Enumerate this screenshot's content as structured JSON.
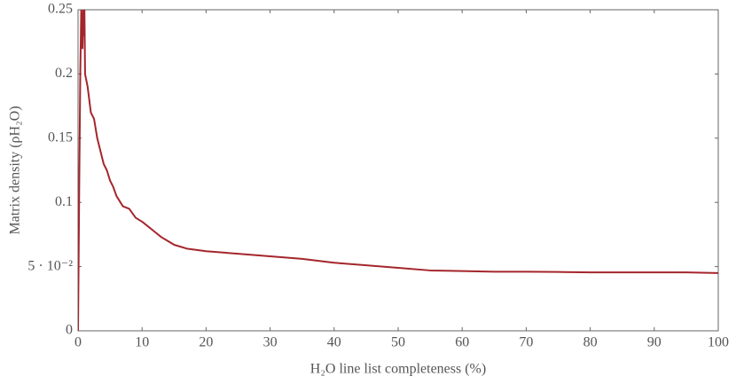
{
  "chart_data": {
    "type": "line",
    "xlabel": "H₂O line list completeness (%)",
    "ylabel": "Matrix density (ρH₂O)",
    "x": [
      0,
      0.2,
      0.35,
      0.5,
      0.6,
      0.7,
      0.8,
      0.9,
      1.0,
      1.1,
      1.5,
      2,
      2.5,
      3,
      3.5,
      4,
      4.5,
      5,
      5.5,
      6,
      7,
      8,
      9,
      10,
      11,
      12,
      13,
      14,
      15,
      17,
      20,
      25,
      30,
      35,
      40,
      45,
      50,
      55,
      60,
      65,
      70,
      75,
      80,
      85,
      90,
      95,
      100
    ],
    "series": [
      {
        "name": "density",
        "color": "#a4262c",
        "values": [
          0,
          0.12,
          0.2,
          0.25,
          0.23,
          0.22,
          0.25,
          0.23,
          0.25,
          0.2,
          0.19,
          0.17,
          0.165,
          0.15,
          0.14,
          0.13,
          0.125,
          0.117,
          0.112,
          0.105,
          0.097,
          0.095,
          0.088,
          0.085,
          0.081,
          0.077,
          0.073,
          0.07,
          0.067,
          0.064,
          0.062,
          0.06,
          0.058,
          0.056,
          0.053,
          0.051,
          0.049,
          0.047,
          0.0465,
          0.046,
          0.046,
          0.0458,
          0.0455,
          0.0455,
          0.0455,
          0.0455,
          0.045
        ]
      }
    ],
    "xlim": [
      0,
      100
    ],
    "xticks": [
      0,
      10,
      20,
      30,
      40,
      50,
      60,
      70,
      80,
      90,
      100
    ],
    "ylim": [
      0,
      0.25
    ],
    "yticks": [
      0,
      {
        "value": 0.05,
        "label": "5 · 10⁻²"
      },
      0.1,
      0.15,
      0.2,
      0.25
    ]
  }
}
